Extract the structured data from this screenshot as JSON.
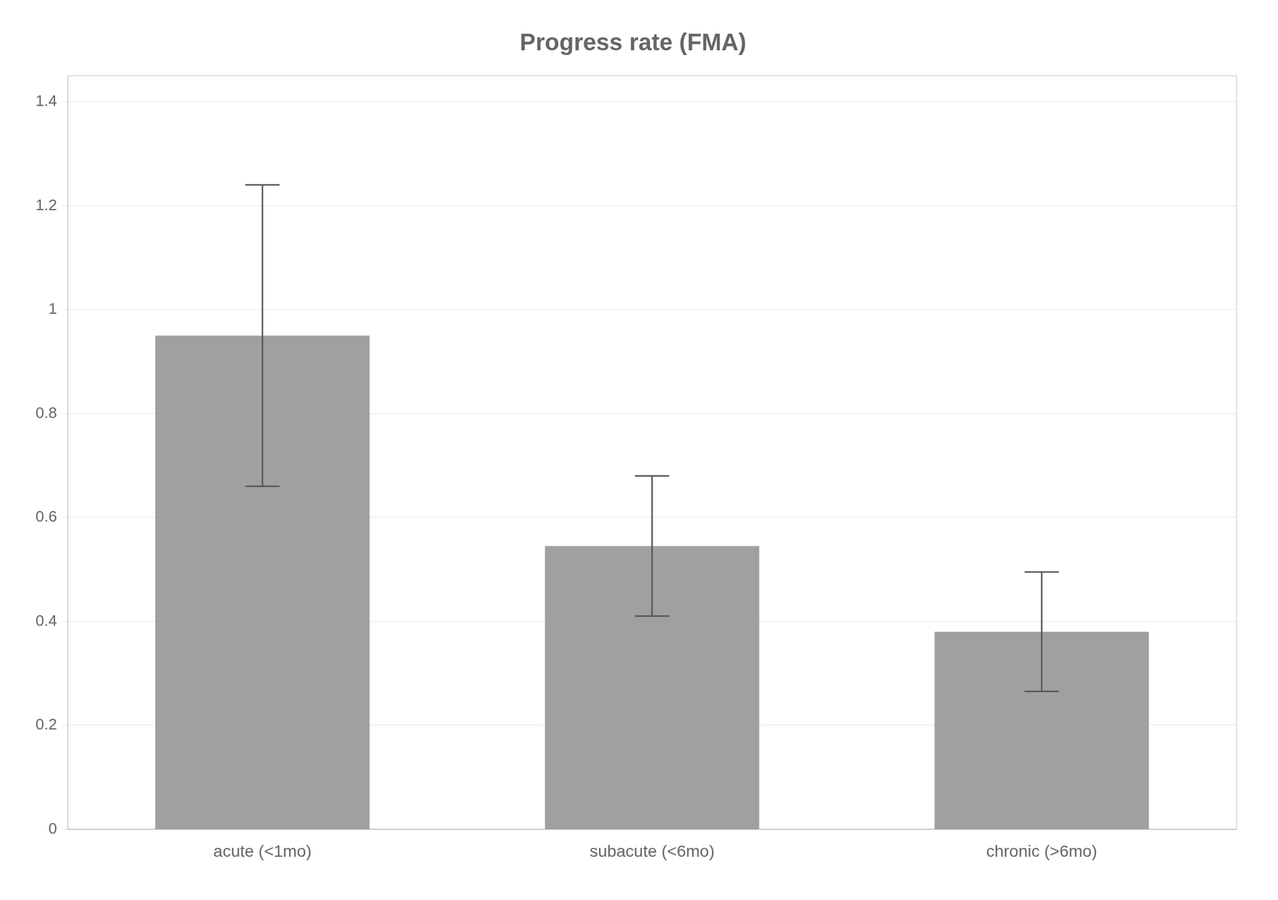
{
  "chart_data": {
    "type": "bar",
    "title": "Progress rate (FMA)",
    "categories": [
      "acute (<1mo)",
      "subacute (<6mo)",
      "chronic (>6mo)"
    ],
    "values": [
      0.95,
      0.545,
      0.38
    ],
    "error_lower": [
      0.29,
      0.135,
      0.115
    ],
    "error_upper": [
      0.29,
      0.135,
      0.115
    ],
    "color": "#A0A0A0",
    "ylim": [
      0,
      1.45
    ],
    "yticks": [
      0,
      0.2,
      0.4,
      0.6,
      0.8,
      1,
      1.2,
      1.4
    ],
    "grid": true
  }
}
